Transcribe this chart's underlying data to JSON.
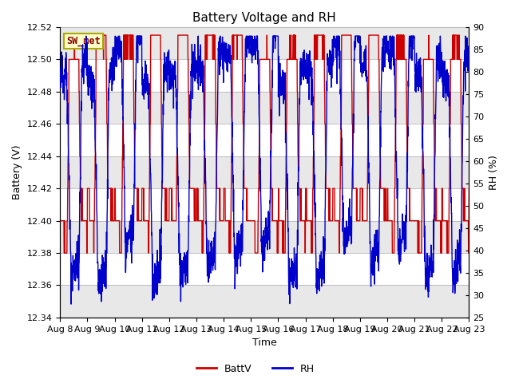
{
  "title": "Battery Voltage and RH",
  "xlabel": "Time",
  "ylabel_left": "Battery (V)",
  "ylabel_right": "RH (%)",
  "ylim_left": [
    12.34,
    12.52
  ],
  "ylim_right": [
    25,
    90
  ],
  "yticks_left": [
    12.34,
    12.36,
    12.38,
    12.4,
    12.42,
    12.44,
    12.46,
    12.48,
    12.5,
    12.52
  ],
  "yticks_right": [
    25,
    30,
    35,
    40,
    45,
    50,
    55,
    60,
    65,
    70,
    75,
    80,
    85,
    90
  ],
  "xtick_labels": [
    "Aug 8",
    "Aug 9",
    "Aug 10",
    "Aug 11",
    "Aug 12",
    "Aug 13",
    "Aug 14",
    "Aug 15",
    "Aug 16",
    "Aug 17",
    "Aug 18",
    "Aug 19",
    "Aug 20",
    "Aug 21",
    "Aug 22",
    "Aug 23"
  ],
  "legend_labels": [
    "BattV",
    "RH"
  ],
  "battv_color": "#cc0000",
  "rh_color": "#0000cc",
  "station_label": "SW_met",
  "bg_color": "#e8e8e8",
  "band_colors": [
    "#e8e8e8",
    "#ffffff"
  ],
  "title_fontsize": 11,
  "label_fontsize": 9,
  "tick_fontsize": 8,
  "legend_fontsize": 9
}
